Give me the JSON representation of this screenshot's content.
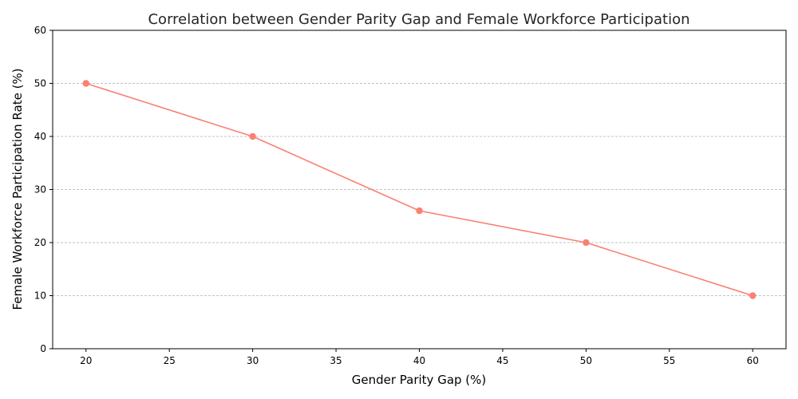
{
  "chart_data": {
    "type": "line",
    "title": "Correlation between Gender Parity Gap and Female Workforce Participation",
    "xlabel": "Gender Parity Gap (%)",
    "ylabel": "Female Workforce Participation Rate (%)",
    "xlim": [
      18,
      62
    ],
    "ylim": [
      0,
      60
    ],
    "xticks": [
      20,
      25,
      30,
      35,
      40,
      45,
      50,
      55,
      60
    ],
    "yticks": [
      0,
      10,
      20,
      30,
      40,
      50,
      60
    ],
    "grid": "horizontal dashed",
    "legend": "none",
    "series": [
      {
        "x": [
          20,
          30,
          40,
          50,
          60
        ],
        "y": [
          50,
          40,
          26,
          20,
          10
        ],
        "color": "#fa8072",
        "marker": "circle"
      }
    ]
  },
  "colors": {
    "line": "#fa8072",
    "grid": "#b0b0b0",
    "axis": "#000000"
  }
}
